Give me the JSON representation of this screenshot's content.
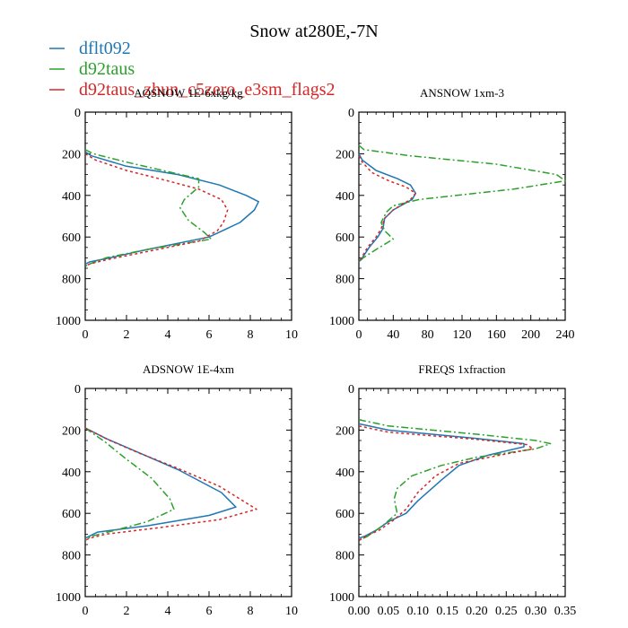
{
  "title": "Snow at280E,-7N",
  "legend": [
    {
      "name": "dflt092",
      "color": "#1f77b4",
      "dash": ""
    },
    {
      "name": "d92taus",
      "color": "#2ca02c",
      "dash": "8,3,2,3"
    },
    {
      "name": "d92taus_zhun_c5zero_e3sm_flags2",
      "color": "#d62728",
      "dash": "3,3"
    }
  ],
  "chart_data": [
    {
      "type": "line",
      "title": "AQSNOW  1E-6xkg/kg",
      "xlim": [
        0,
        10
      ],
      "xticks": [
        0,
        2,
        4,
        6,
        8,
        10
      ],
      "ylim": [
        0,
        1000
      ],
      "yticks": [
        0,
        200,
        400,
        600,
        800,
        1000
      ],
      "y_inverted": true,
      "series": [
        {
          "name": "dflt092",
          "points": [
            [
              0,
              190
            ],
            [
              0.3,
              210
            ],
            [
              2,
              260
            ],
            [
              4.5,
              300
            ],
            [
              6.5,
              350
            ],
            [
              7.8,
              400
            ],
            [
              8.4,
              430
            ],
            [
              8.2,
              470
            ],
            [
              7.5,
              530
            ],
            [
              6,
              600
            ],
            [
              3,
              660
            ],
            [
              1.2,
              700
            ],
            [
              0.2,
              720
            ],
            [
              0,
              730
            ]
          ]
        },
        {
          "name": "d92taus",
          "points": [
            [
              0,
              180
            ],
            [
              0.4,
              200
            ],
            [
              2,
              240
            ],
            [
              5.5,
              320
            ],
            [
              5.5,
              360
            ],
            [
              4.8,
              420
            ],
            [
              4.6,
              460
            ],
            [
              5,
              520
            ],
            [
              5.8,
              580
            ],
            [
              6.1,
              610
            ],
            [
              3,
              660
            ],
            [
              1,
              700
            ],
            [
              0.2,
              730
            ],
            [
              0,
              740
            ]
          ]
        },
        {
          "name": "d92taus_zhun_c5zero_e3sm_flags2",
          "points": [
            [
              0,
              200
            ],
            [
              0.5,
              230
            ],
            [
              2,
              280
            ],
            [
              4,
              330
            ],
            [
              5.5,
              370
            ],
            [
              6.6,
              420
            ],
            [
              6.9,
              470
            ],
            [
              6.7,
              530
            ],
            [
              6.4,
              570
            ],
            [
              5.5,
              620
            ],
            [
              3,
              670
            ],
            [
              1,
              710
            ],
            [
              0.2,
              730
            ],
            [
              0,
              740
            ]
          ]
        }
      ]
    },
    {
      "type": "line",
      "title": "ANSNOW  1xm-3",
      "xlim": [
        0,
        240
      ],
      "xticks": [
        0,
        40,
        80,
        120,
        160,
        200,
        240
      ],
      "ylim": [
        0,
        1000
      ],
      "yticks": [
        0,
        200,
        400,
        600,
        800,
        1000
      ],
      "y_inverted": true,
      "series": [
        {
          "name": "dflt092",
          "points": [
            [
              0,
              200
            ],
            [
              4,
              230
            ],
            [
              20,
              280
            ],
            [
              45,
              320
            ],
            [
              60,
              350
            ],
            [
              66,
              390
            ],
            [
              62,
              420
            ],
            [
              40,
              470
            ],
            [
              30,
              510
            ],
            [
              28,
              560
            ],
            [
              22,
              600
            ],
            [
              12,
              650
            ],
            [
              4,
              700
            ],
            [
              0,
              720
            ]
          ]
        },
        {
          "name": "d92taus",
          "points": [
            [
              0,
              160
            ],
            [
              6,
              180
            ],
            [
              60,
              210
            ],
            [
              160,
              250
            ],
            [
              230,
              300
            ],
            [
              240,
              330
            ],
            [
              180,
              370
            ],
            [
              70,
              420
            ],
            [
              40,
              450
            ],
            [
              32,
              480
            ],
            [
              26,
              530
            ],
            [
              30,
              570
            ],
            [
              40,
              610
            ],
            [
              20,
              660
            ],
            [
              5,
              700
            ],
            [
              0,
              720
            ]
          ]
        },
        {
          "name": "d92taus_zhun_c5zero_e3sm_flags2",
          "points": [
            [
              0,
              210
            ],
            [
              4,
              240
            ],
            [
              15,
              290
            ],
            [
              35,
              330
            ],
            [
              55,
              360
            ],
            [
              66,
              390
            ],
            [
              60,
              420
            ],
            [
              40,
              470
            ],
            [
              30,
              510
            ],
            [
              26,
              560
            ],
            [
              20,
              600
            ],
            [
              10,
              650
            ],
            [
              3,
              700
            ],
            [
              0,
              720
            ]
          ]
        }
      ]
    },
    {
      "type": "line",
      "title": "ADSNOW  1E-4xm",
      "xlim": [
        0,
        10
      ],
      "xticks": [
        0,
        2,
        4,
        6,
        8,
        10
      ],
      "ylim": [
        0,
        1000
      ],
      "yticks": [
        0,
        200,
        400,
        600,
        800,
        1000
      ],
      "y_inverted": true,
      "series": [
        {
          "name": "dflt092",
          "points": [
            [
              0,
              190
            ],
            [
              1,
              240
            ],
            [
              2.4,
              300
            ],
            [
              4.5,
              390
            ],
            [
              6.6,
              500
            ],
            [
              7.3,
              570
            ],
            [
              6,
              610
            ],
            [
              3,
              660
            ],
            [
              0.6,
              690
            ],
            [
              0.2,
              710
            ],
            [
              0,
              720
            ]
          ]
        },
        {
          "name": "d92taus",
          "points": [
            [
              0,
              190
            ],
            [
              1,
              260
            ],
            [
              2,
              340
            ],
            [
              3.2,
              430
            ],
            [
              4.1,
              530
            ],
            [
              4.3,
              580
            ],
            [
              3,
              640
            ],
            [
              1.5,
              680
            ],
            [
              0.3,
              710
            ],
            [
              0,
              730
            ]
          ]
        },
        {
          "name": "d92taus_zhun_c5zero_e3sm_flags2",
          "points": [
            [
              0,
              190
            ],
            [
              1.2,
              250
            ],
            [
              2.6,
              310
            ],
            [
              4.4,
              380
            ],
            [
              6.5,
              470
            ],
            [
              8.3,
              580
            ],
            [
              6.5,
              630
            ],
            [
              3.5,
              670
            ],
            [
              1,
              700
            ],
            [
              0.2,
              720
            ],
            [
              0,
              730
            ]
          ]
        }
      ]
    },
    {
      "type": "line",
      "title": "FREQS  1xfraction",
      "xlim": [
        0,
        0.35
      ],
      "xticks": [
        0.0,
        0.05,
        0.1,
        0.15,
        0.2,
        0.25,
        0.3,
        0.35
      ],
      "yticks": [
        0,
        200,
        400,
        600,
        800,
        1000
      ],
      "ylim": [
        0,
        1000
      ],
      "y_inverted": true,
      "series": [
        {
          "name": "dflt092",
          "points": [
            [
              0,
              170
            ],
            [
              0.05,
              200
            ],
            [
              0.2,
              240
            ],
            [
              0.28,
              265
            ],
            [
              0.28,
              280
            ],
            [
              0.22,
              320
            ],
            [
              0.17,
              370
            ],
            [
              0.14,
              440
            ],
            [
              0.1,
              540
            ],
            [
              0.08,
              600
            ],
            [
              0.05,
              640
            ],
            [
              0.03,
              680
            ],
            [
              0.01,
              710
            ],
            [
              0,
              720
            ]
          ]
        },
        {
          "name": "d92taus",
          "points": [
            [
              0,
              150
            ],
            [
              0.05,
              180
            ],
            [
              0.2,
              220
            ],
            [
              0.3,
              250
            ],
            [
              0.325,
              265
            ],
            [
              0.3,
              290
            ],
            [
              0.2,
              330
            ],
            [
              0.14,
              370
            ],
            [
              0.09,
              420
            ],
            [
              0.065,
              480
            ],
            [
              0.06,
              530
            ],
            [
              0.065,
              600
            ],
            [
              0.04,
              660
            ],
            [
              0.015,
              710
            ],
            [
              0,
              730
            ]
          ]
        },
        {
          "name": "d92taus_zhun_c5zero_e3sm_flags2",
          "points": [
            [
              0,
              180
            ],
            [
              0.05,
              210
            ],
            [
              0.2,
              245
            ],
            [
              0.285,
              270
            ],
            [
              0.295,
              290
            ],
            [
              0.24,
              320
            ],
            [
              0.17,
              360
            ],
            [
              0.13,
              420
            ],
            [
              0.1,
              500
            ],
            [
              0.08,
              580
            ],
            [
              0.06,
              630
            ],
            [
              0.035,
              680
            ],
            [
              0.012,
              710
            ],
            [
              0,
              730
            ]
          ]
        }
      ]
    }
  ]
}
